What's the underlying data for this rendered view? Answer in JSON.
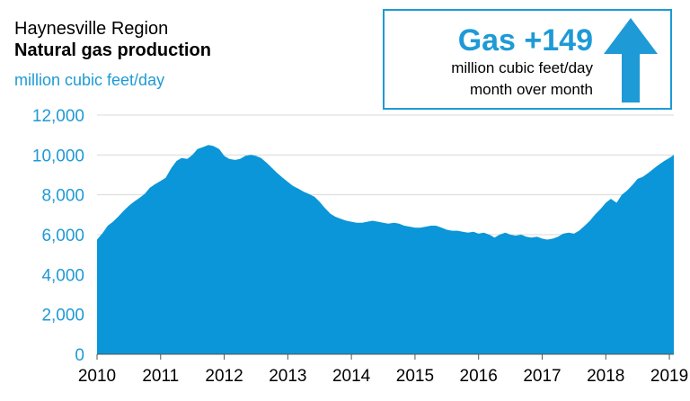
{
  "header": {
    "region": "Haynesville Region",
    "title": "Natural gas production",
    "units": "million cubic feet/day"
  },
  "callout": {
    "headline": "Gas +149",
    "line1": "million cubic feet/day",
    "line2": "month over month",
    "arrow_icon": "up-arrow-icon"
  },
  "colors": {
    "accent": "#1e9ad6",
    "area_fill": "#0a96d8",
    "gridline": "#d9d9d9"
  },
  "chart_data": {
    "type": "area",
    "title": "Natural gas production",
    "ylabel": "million cubic feet/day",
    "xlabel": "",
    "ylim": [
      0,
      12000
    ],
    "xlim": [
      2010,
      2019.07
    ],
    "y_ticks": [
      0,
      2000,
      4000,
      6000,
      8000,
      10000,
      12000
    ],
    "y_tick_labels": [
      "0",
      "2,000",
      "4,000",
      "6,000",
      "8,000",
      "10,000",
      "12,000"
    ],
    "x_ticks": [
      2010,
      2011,
      2012,
      2013,
      2014,
      2015,
      2016,
      2017,
      2018,
      2019
    ],
    "x_tick_labels": [
      "2010",
      "2011",
      "2012",
      "2013",
      "2014",
      "2015",
      "2016",
      "2017",
      "2018",
      "2019"
    ],
    "grid": true,
    "series": [
      {
        "x": [
          2010.0,
          2010.08,
          2010.17,
          2010.25,
          2010.33,
          2010.42,
          2010.5,
          2010.58,
          2010.67,
          2010.75,
          2010.83,
          2010.92,
          2011.0,
          2011.08,
          2011.17,
          2011.25,
          2011.33,
          2011.42,
          2011.5,
          2011.58,
          2011.67,
          2011.75,
          2011.83,
          2011.92,
          2012.0,
          2012.08,
          2012.17,
          2012.25,
          2012.33,
          2012.42,
          2012.5,
          2012.58,
          2012.67,
          2012.75,
          2012.83,
          2012.92,
          2013.0,
          2013.08,
          2013.17,
          2013.25,
          2013.33,
          2013.42,
          2013.5,
          2013.58,
          2013.67,
          2013.75,
          2013.83,
          2013.92,
          2014.0,
          2014.08,
          2014.17,
          2014.25,
          2014.33,
          2014.42,
          2014.5,
          2014.58,
          2014.67,
          2014.75,
          2014.83,
          2014.92,
          2015.0,
          2015.08,
          2015.17,
          2015.25,
          2015.33,
          2015.42,
          2015.5,
          2015.58,
          2015.67,
          2015.75,
          2015.83,
          2015.92,
          2016.0,
          2016.08,
          2016.17,
          2016.25,
          2016.33,
          2016.42,
          2016.5,
          2016.58,
          2016.67,
          2016.75,
          2016.83,
          2016.92,
          2017.0,
          2017.08,
          2017.17,
          2017.25,
          2017.33,
          2017.42,
          2017.5,
          2017.58,
          2017.67,
          2017.75,
          2017.83,
          2017.92,
          2018.0,
          2018.08,
          2018.17,
          2018.25,
          2018.33,
          2018.42,
          2018.5,
          2018.58,
          2018.67,
          2018.75,
          2018.83,
          2018.92,
          2019.0,
          2019.07
        ],
        "values": [
          5750,
          6050,
          6450,
          6650,
          6900,
          7200,
          7450,
          7650,
          7850,
          8050,
          8350,
          8550,
          8700,
          8850,
          9350,
          9700,
          9850,
          9800,
          10000,
          10300,
          10400,
          10500,
          10450,
          10300,
          9950,
          9800,
          9750,
          9800,
          9950,
          10000,
          9950,
          9850,
          9600,
          9350,
          9100,
          8850,
          8650,
          8450,
          8300,
          8150,
          8050,
          7900,
          7650,
          7350,
          7050,
          6900,
          6800,
          6700,
          6650,
          6600,
          6600,
          6650,
          6700,
          6650,
          6600,
          6550,
          6600,
          6550,
          6450,
          6400,
          6350,
          6350,
          6400,
          6450,
          6450,
          6350,
          6250,
          6200,
          6200,
          6150,
          6100,
          6150,
          6050,
          6100,
          6000,
          5850,
          6000,
          6100,
          6000,
          5950,
          6000,
          5900,
          5850,
          5900,
          5800,
          5750,
          5800,
          5900,
          6050,
          6100,
          6050,
          6200,
          6450,
          6700,
          7000,
          7300,
          7600,
          7800,
          7600,
          8000,
          8200,
          8500,
          8800,
          8900,
          9100,
          9300,
          9500,
          9700,
          9850,
          10000
        ]
      }
    ]
  }
}
